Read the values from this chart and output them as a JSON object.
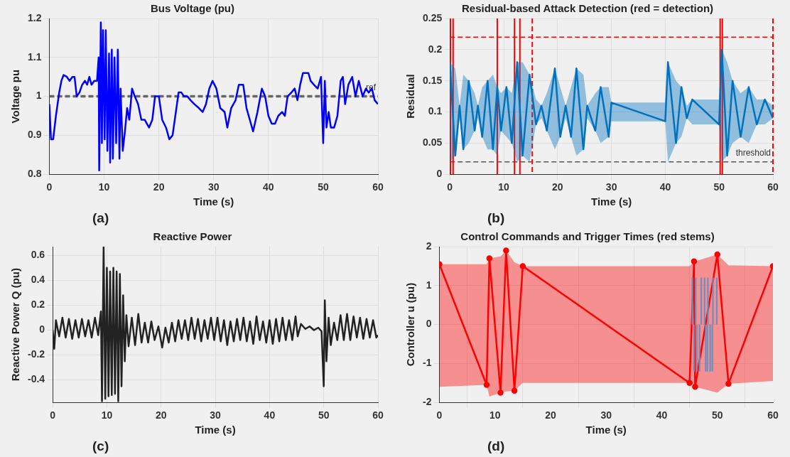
{
  "chart_data": [
    {
      "type": "line",
      "title": "Bus Voltage (pu)",
      "xlabel": "Time (s)",
      "ylabel": "Voltage pu",
      "xlim": [
        0,
        60
      ],
      "xticks": [
        0,
        10,
        20,
        30,
        40,
        50,
        60
      ],
      "ylim": [
        0.8,
        1.2
      ],
      "yticks": [
        0.8,
        0.9,
        1,
        1.1,
        1.2
      ],
      "grid": true,
      "legend": false,
      "annotations": [
        "(a)"
      ],
      "ref_lines": [
        {
          "axis": "y",
          "value": 1,
          "label": "ref",
          "color": "#666666",
          "line_style": "dashed"
        }
      ],
      "series": [
        {
          "color": "#0000ff",
          "x": [
            0,
            0.3,
            0.7,
            1.2,
            1.8,
            2.2,
            2.6,
            3.2,
            3.7,
            4.2,
            4.6,
            5,
            5.5,
            6,
            6.5,
            6.9,
            7.3,
            7.7,
            8.2,
            8.7,
            9,
            9.1,
            9.4,
            9.6,
            9.8,
            10.1,
            10.3,
            10.6,
            10.9,
            11.1,
            11.4,
            11.6,
            11.9,
            12.2,
            12.5,
            12.8,
            13,
            13.4,
            13.8,
            14.2,
            14.6,
            15.1,
            15.6,
            16.2,
            16.8,
            17.4,
            18.2,
            18.8,
            19.3,
            20,
            20.6,
            21.3,
            21.9,
            22.5,
            23.1,
            23.6,
            24.1,
            24.6,
            25.2,
            25.8,
            26.5,
            27.3,
            28,
            28.6,
            29.2,
            29.8,
            30.5,
            31.2,
            32,
            32.5,
            33.2,
            34,
            34.6,
            35.4,
            36,
            36.6,
            37.2,
            38,
            38.8,
            39.4,
            40,
            40.6,
            41.2,
            41.8,
            42.5,
            43,
            43.5,
            44.2,
            44.8,
            45.3,
            45.8,
            46.3,
            46.8,
            47.3,
            47.7,
            48.3,
            49,
            49.6,
            50,
            50.3,
            50.6,
            51,
            51.4,
            52,
            52.6,
            53.2,
            53.6,
            54,
            54.6,
            55.3,
            55.9,
            56.5,
            57.2,
            57.8,
            58.3,
            58.9,
            59.4,
            60
          ],
          "values": [
            0.98,
            0.89,
            0.89,
            0.95,
            1.01,
            1.04,
            1.055,
            1.05,
            1.04,
            1.05,
            1.05,
            1,
            1.01,
            1.03,
            1.04,
            1.03,
            1.05,
            1.03,
            1.04,
            1.04,
            1.1,
            0.81,
            1.19,
            0.88,
            1.17,
            0.89,
            1.17,
            0.86,
            1.11,
            0.83,
            1.12,
            0.84,
            1.1,
            0.88,
            1.12,
            0.84,
            1.02,
            0.86,
            0.91,
            0.97,
            0.94,
            1.02,
            1,
            0.98,
            0.94,
            0.94,
            0.92,
            0.94,
            1,
            1,
            0.94,
            0.92,
            0.89,
            0.9,
            0.96,
            1.01,
            1.01,
            1,
            1,
            0.99,
            0.98,
            0.97,
            0.96,
            0.98,
            1.02,
            1.04,
            1.02,
            0.97,
            0.96,
            0.92,
            0.97,
            0.99,
            1.03,
            1.03,
            0.97,
            0.94,
            0.91,
            0.96,
            1.02,
            1,
            0.95,
            0.93,
            0.93,
            0.95,
            0.96,
            0.95,
            1,
            1.01,
            1.02,
            0.99,
            1.03,
            1.06,
            1.06,
            1.06,
            1.04,
            1.03,
            1.02,
            1.05,
            0.88,
            1.04,
            0.92,
            0.96,
            0.92,
            0.92,
            0.95,
            1.04,
            1.05,
            0.98,
            1.03,
            1.05,
            1,
            1.04,
            1,
            1.02,
            1.01,
            1.02,
            0.99,
            0.98
          ]
        }
      ]
    },
    {
      "type": "line",
      "title": "Residual-based Attack Detection (red = detection)",
      "xlabel": "Time (s)",
      "ylabel": "Residual",
      "xlim": [
        0,
        60
      ],
      "xticks": [
        0,
        10,
        20,
        30,
        40,
        50,
        60
      ],
      "ylim": [
        0,
        0.25
      ],
      "yticks": [
        0,
        0.05,
        0.1,
        0.15,
        0.2,
        0.25
      ],
      "grid": true,
      "legend": false,
      "annotations": [
        "(b)"
      ],
      "ref_lines": [
        {
          "axis": "y",
          "value": 0.02,
          "label": "threshold",
          "color": "#555555",
          "line_style": "dashed"
        },
        {
          "axis": "y",
          "value": 0.22,
          "color": "#ff0000",
          "line_style": "dashed"
        },
        {
          "axis": "x",
          "value": 0.1,
          "color": "#ff0000",
          "line_style": "solid"
        },
        {
          "axis": "x",
          "value": 0.6,
          "color": "#ff0000",
          "line_style": "solid"
        },
        {
          "axis": "x",
          "value": 8.8,
          "color": "#ff0000",
          "line_style": "solid"
        },
        {
          "axis": "x",
          "value": 12,
          "color": "#ff0000",
          "line_style": "solid"
        },
        {
          "axis": "x",
          "value": 13,
          "color": "#ff0000",
          "line_style": "solid"
        },
        {
          "axis": "x",
          "value": 15.3,
          "color": "#ff0000",
          "line_style": "dashed"
        },
        {
          "axis": "x",
          "value": 50.2,
          "color": "#ff0000",
          "line_style": "solid"
        },
        {
          "axis": "x",
          "value": 50.6,
          "color": "#ff0000",
          "line_style": "solid"
        },
        {
          "axis": "x",
          "value": 60,
          "color": "#ff0000",
          "line_style": "dashed"
        }
      ],
      "series": [
        {
          "color": "#0072bd",
          "x": [
            0,
            1,
            1.8,
            2.5,
            3.5,
            4.6,
            5.2,
            6,
            7,
            8,
            8.8,
            9.5,
            10.5,
            11.5,
            12.5,
            13.5,
            14.8,
            16,
            17,
            18,
            19.5,
            20.5,
            21.5,
            22.5,
            23.5,
            24.8,
            25.5,
            27,
            28,
            29.5,
            30,
            40,
            40.5,
            42,
            43,
            44,
            45,
            50,
            50.5,
            51.5,
            52.5,
            54,
            55.5,
            57,
            58.5,
            60
          ],
          "values": [
            0.18,
            0.03,
            0.11,
            0.04,
            0.15,
            0.07,
            0.11,
            0.06,
            0.15,
            0.04,
            0.14,
            0.07,
            0.14,
            0.05,
            0.18,
            0.03,
            0.16,
            0.08,
            0.11,
            0.07,
            0.17,
            0.06,
            0.11,
            0.06,
            0.17,
            0.04,
            0.11,
            0.07,
            0.14,
            0.06,
            0.115,
            0.085,
            0.18,
            0.05,
            0.14,
            0.09,
            0.12,
            0.08,
            0.2,
            0.03,
            0.15,
            0.06,
            0.14,
            0.08,
            0.12,
            0.09
          ],
          "upper": [
            0.18,
            0.17,
            0.11,
            0.16,
            0.15,
            0.13,
            0.11,
            0.14,
            0.15,
            0.16,
            0.14,
            0.13,
            0.14,
            0.13,
            0.18,
            0.18,
            0.16,
            0.12,
            0.11,
            0.13,
            0.17,
            0.14,
            0.11,
            0.14,
            0.17,
            0.16,
            0.11,
            0.13,
            0.14,
            0.14,
            0.115,
            0.115,
            0.18,
            0.15,
            0.14,
            0.11,
            0.12,
            0.12,
            0.2,
            0.18,
            0.15,
            0.13,
            0.14,
            0.12,
            0.12,
            0.11
          ],
          "lower": [
            0.02,
            0.03,
            0.09,
            0.04,
            0.05,
            0.07,
            0.09,
            0.06,
            0.04,
            0.04,
            0.03,
            0.07,
            0.06,
            0.05,
            0.02,
            0.03,
            0.02,
            0.08,
            0.09,
            0.07,
            0.04,
            0.06,
            0.09,
            0.06,
            0.03,
            0.04,
            0.09,
            0.07,
            0.05,
            0.06,
            0.085,
            0.085,
            0.02,
            0.05,
            0.06,
            0.09,
            0.08,
            0.08,
            0.02,
            0.03,
            0.05,
            0.06,
            0.05,
            0.08,
            0.08,
            0.09
          ]
        }
      ]
    },
    {
      "type": "line",
      "title": "Reactive Power",
      "xlabel": "Time (s)",
      "ylabel": "Reactive Power Q (pu)",
      "xlim": [
        0,
        60
      ],
      "xticks": [
        0,
        10,
        20,
        30,
        40,
        50,
        60
      ],
      "ylim": [
        -0.58,
        0.67
      ],
      "yticks": [
        -0.4,
        -0.2,
        0,
        0.2,
        0.4,
        0.6
      ],
      "grid": true,
      "legend": false,
      "annotations": [
        "(c)"
      ],
      "series": [
        {
          "color": "#222222",
          "x": [
            0,
            0.3,
            0.6,
            1.2,
            1.8,
            2.4,
            3,
            3.6,
            4.2,
            4.8,
            5.4,
            6,
            6.6,
            7.2,
            7.8,
            8.4,
            8.9,
            9.1,
            9.4,
            9.7,
            10,
            10.3,
            10.6,
            10.9,
            11.2,
            11.5,
            11.8,
            12.1,
            12.4,
            12.7,
            13,
            13.3,
            13.6,
            14,
            14.6,
            15.2,
            15.8,
            16.4,
            17,
            17.6,
            18.2,
            18.8,
            19.5,
            20.2,
            20.8,
            21.4,
            22,
            22.6,
            23.2,
            23.8,
            24.4,
            25,
            25.6,
            26.2,
            26.8,
            27.4,
            28,
            28.6,
            29.2,
            29.8,
            30.4,
            31,
            31.6,
            32.2,
            32.8,
            33.4,
            34,
            34.6,
            35.2,
            35.8,
            36.4,
            37,
            37.6,
            38.2,
            38.8,
            39.4,
            40,
            40.6,
            41.2,
            41.8,
            42.4,
            43,
            43.6,
            44.2,
            44.8,
            45.2,
            45.8,
            46.6,
            47.4,
            48.2,
            49,
            49.6,
            50,
            50.2,
            50.5,
            50.9,
            51.3,
            51.9,
            52.5,
            53.1,
            53.7,
            54.3,
            54.9,
            55.5,
            56.1,
            56.7,
            57.3,
            57.9,
            58.5,
            59.1,
            59.7,
            60
          ],
          "values": [
            0,
            -0.15,
            0.08,
            -0.05,
            0.1,
            -0.06,
            0.09,
            -0.07,
            0.08,
            -0.06,
            0.09,
            -0.05,
            0.08,
            -0.06,
            0.1,
            -0.04,
            0.15,
            -0.57,
            0.67,
            -0.55,
            0.5,
            -0.53,
            0.47,
            -0.52,
            0.5,
            -0.51,
            0.47,
            -0.57,
            0.45,
            -0.45,
            0.28,
            -0.25,
            0.12,
            -0.13,
            0.1,
            -0.12,
            0.13,
            -0.1,
            0.06,
            -0.1,
            0.07,
            -0.08,
            0.03,
            -0.14,
            0.02,
            -0.1,
            0.06,
            -0.09,
            0.08,
            -0.07,
            0.08,
            -0.08,
            0.1,
            -0.07,
            0.09,
            -0.09,
            0.08,
            -0.07,
            0.1,
            -0.08,
            0.1,
            -0.09,
            0.08,
            -0.12,
            0.07,
            -0.09,
            0.09,
            -0.08,
            0.1,
            -0.09,
            0.07,
            -0.11,
            0.11,
            -0.08,
            0.07,
            -0.1,
            0.08,
            -0.11,
            0.09,
            -0.09,
            0.1,
            -0.08,
            0.08,
            -0.08,
            0.11,
            -0.05,
            0.05,
            0.01,
            0.03,
            0,
            0.02,
            -0.01,
            -0.45,
            0.24,
            -0.25,
            0.1,
            -0.12,
            0.06,
            -0.08,
            0.12,
            -0.08,
            0.13,
            -0.08,
            0.11,
            -0.06,
            0.1,
            -0.07,
            0.09,
            -0.06,
            0.08,
            -0.06,
            -0.04
          ]
        }
      ]
    },
    {
      "type": "line",
      "title": "Control Commands and Trigger Times (red stems)",
      "xlabel": "Time (s)",
      "ylabel": "Controller u (pu)",
      "xlim": [
        0,
        60
      ],
      "xticks": [
        0,
        10,
        20,
        30,
        40,
        50,
        60
      ],
      "ylim": [
        -2,
        2
      ],
      "yticks": [
        -2,
        -1,
        0,
        1,
        2
      ],
      "grid": true,
      "legend": false,
      "marker": "circle",
      "annotations": [
        "(d)"
      ],
      "series": [
        {
          "color": "#ff0000",
          "x": [
            0,
            8.5,
            9,
            11,
            12,
            13.5,
            15,
            45,
            45.8,
            46,
            50,
            52,
            60
          ],
          "values": [
            1.55,
            -1.55,
            1.7,
            -1.75,
            1.9,
            -1.7,
            1.5,
            -1.5,
            1.62,
            -1.6,
            1.8,
            -1.52,
            1.5
          ],
          "upper": [
            1.55,
            1.55,
            1.7,
            1.75,
            1.9,
            1.6,
            1.5,
            1.5,
            1.62,
            1.62,
            1.8,
            1.52,
            1.5
          ],
          "lower": [
            -1.6,
            -1.55,
            -1.85,
            -1.75,
            -1.72,
            -1.7,
            -1.5,
            -1.5,
            -1.58,
            -1.6,
            -1.75,
            -1.52,
            -1.45
          ]
        },
        {
          "type": "bar",
          "color": "#6c8ebf",
          "x": [
            45.5,
            45.8,
            46.1,
            46.3,
            46.8,
            47.1,
            47.7,
            47.9,
            48.2,
            48.3,
            48.7,
            49.1,
            49.2,
            49.9
          ],
          "values": [
            1.2,
            -1.2,
            1.2,
            -1.2,
            -1.2,
            1.2,
            1.2,
            -1.2,
            -1.2,
            1.2,
            -1.2,
            -1.2,
            1.2,
            1.2
          ]
        }
      ]
    }
  ]
}
